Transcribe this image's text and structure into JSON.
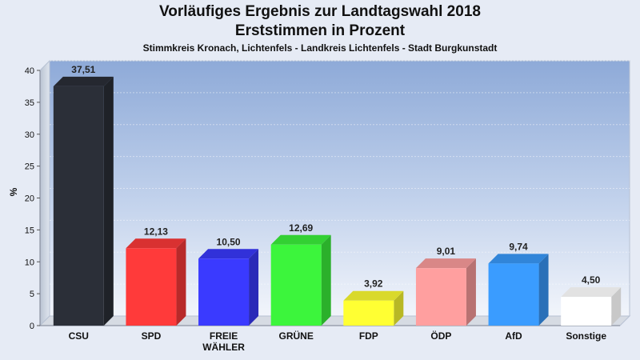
{
  "header": {
    "title_line1": "Vorläufiges Ergebnis zur Landtagswahl 2018",
    "title_line2": "Erststimmen in Prozent",
    "subtitle": "Stimmkreis Kronach, Lichtenfels - Landkreis Lichtenfels - Stadt Burgkunstadt"
  },
  "chart_data": {
    "type": "bar",
    "title": "Vorläufiges Ergebnis zur Landtagswahl 2018 – Erststimmen in Prozent",
    "subtitle": "Stimmkreis Kronach, Lichtenfels - Landkreis Lichtenfels - Stadt Burgkunstadt",
    "ylabel": "%",
    "xlabel": "",
    "ylim": [
      0,
      40
    ],
    "yticks": [
      0,
      5,
      10,
      15,
      20,
      25,
      30,
      35,
      40
    ],
    "grid": true,
    "legend": "none",
    "categories": [
      "CSU",
      "SPD",
      "FREIE WÄHLER",
      "GRÜNE",
      "FDP",
      "ÖDP",
      "AfD",
      "Sonstige"
    ],
    "category_lines": [
      [
        "CSU"
      ],
      [
        "SPD"
      ],
      [
        "FREIE",
        "WÄHLER"
      ],
      [
        "GRÜNE"
      ],
      [
        "FDP"
      ],
      [
        "ÖDP"
      ],
      [
        "AfD"
      ],
      [
        "Sonstige"
      ]
    ],
    "values": [
      37.51,
      12.13,
      10.5,
      12.69,
      3.92,
      9.01,
      9.74,
      4.5
    ],
    "value_labels": [
      "37,51",
      "12,13",
      "10,50",
      "12,69",
      "3,92",
      "9,01",
      "9,74",
      "4,50"
    ],
    "colors": [
      "#2b2f38",
      "#ff3a3a",
      "#3a3aff",
      "#3cf53c",
      "#ffff33",
      "#ff9f9f",
      "#3a9cff",
      "#ffffff"
    ]
  }
}
